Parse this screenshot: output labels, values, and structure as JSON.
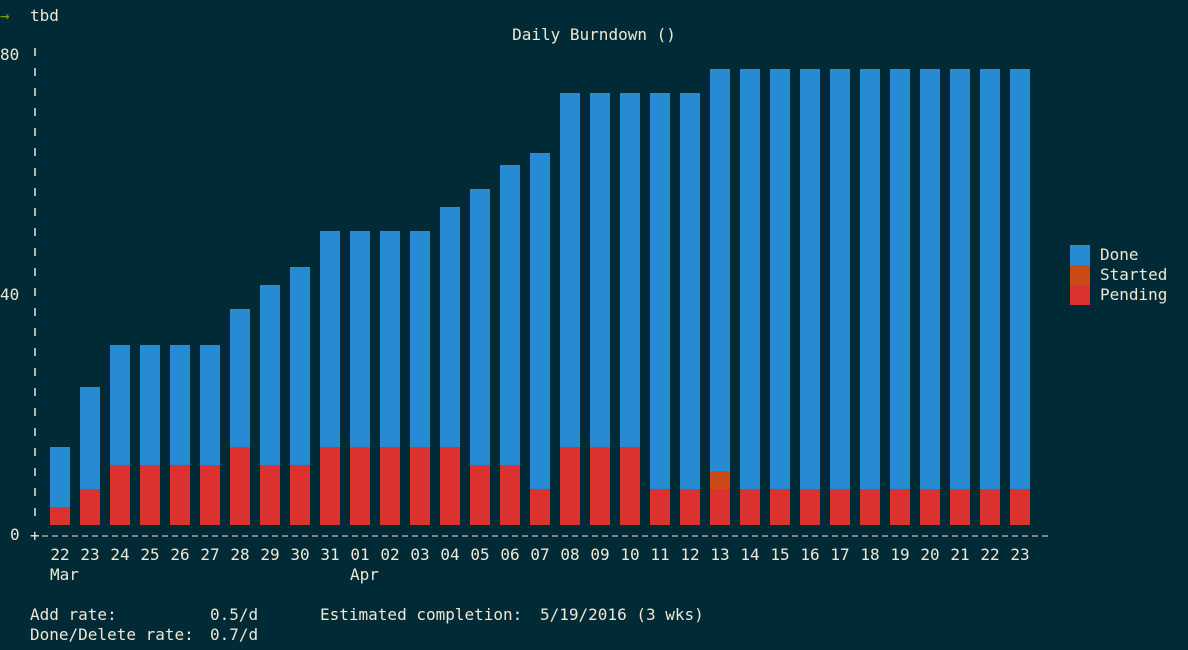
{
  "terminal": {
    "prompt_arrow": "→",
    "command": "tbd"
  },
  "colors": {
    "background": "#002b36",
    "text": "#eee8d5",
    "done": "#268bd2",
    "started": "#cb4b16",
    "pending": "#dc322f",
    "prompt": "#859900"
  },
  "chart_data": {
    "type": "bar",
    "stacked": true,
    "title": "Daily Burndown ()",
    "ylim": [
      0,
      80
    ],
    "yticks": [
      "80",
      "40",
      "0"
    ],
    "categories": [
      "22",
      "23",
      "24",
      "25",
      "26",
      "27",
      "28",
      "29",
      "30",
      "31",
      "01",
      "02",
      "03",
      "04",
      "05",
      "06",
      "07",
      "08",
      "09",
      "10",
      "11",
      "12",
      "13",
      "14",
      "15",
      "16",
      "17",
      "18",
      "19",
      "20",
      "21",
      "22",
      "23"
    ],
    "month_labels": [
      {
        "index": 0,
        "label": "Mar"
      },
      {
        "index": 10,
        "label": "Apr"
      }
    ],
    "series": [
      {
        "name": "Pending",
        "color": "#dc322f",
        "values": [
          3,
          6,
          10,
          10,
          10,
          10,
          13,
          10,
          10,
          13,
          13,
          13,
          13,
          13,
          10,
          10,
          6,
          13,
          13,
          13,
          6,
          6,
          6,
          6,
          6,
          6,
          6,
          6,
          6,
          6,
          6,
          6,
          6
        ]
      },
      {
        "name": "Started",
        "color": "#cb4b16",
        "values": [
          0,
          0,
          0,
          0,
          0,
          0,
          0,
          0,
          0,
          0,
          0,
          0,
          0,
          0,
          0,
          0,
          0,
          0,
          0,
          0,
          0,
          0,
          3,
          0,
          0,
          0,
          0,
          0,
          0,
          0,
          0,
          0,
          0
        ]
      },
      {
        "name": "Done",
        "color": "#268bd2",
        "values": [
          10,
          17,
          20,
          20,
          20,
          20,
          23,
          30,
          33,
          36,
          36,
          36,
          36,
          40,
          46,
          50,
          56,
          59,
          59,
          59,
          66,
          66,
          67,
          70,
          70,
          70,
          70,
          70,
          70,
          70,
          70,
          70,
          70
        ]
      }
    ],
    "legend": [
      "Done",
      "Started",
      "Pending"
    ],
    "legend_position": "right"
  },
  "footer": {
    "add_rate_label": "Add rate:",
    "add_rate_value": "0.5/d",
    "done_rate_label": "Done/Delete rate:",
    "done_rate_value": "0.7/d",
    "completion_label": "Estimated completion:",
    "completion_value": "5/19/2016 (3 wks)"
  }
}
